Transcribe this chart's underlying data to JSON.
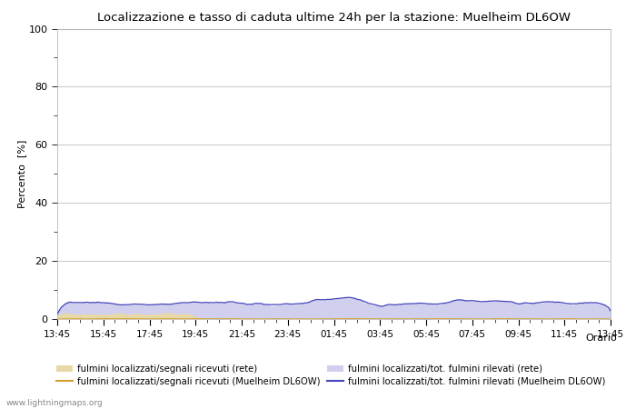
{
  "title": "Localizzazione e tasso di caduta ultime 24h per la stazione: Muelheim DL6OW",
  "ylabel": "Percento  [%]",
  "xlabel": "Orario",
  "xlim": [
    0,
    24
  ],
  "ylim": [
    0,
    100
  ],
  "yticks": [
    0,
    20,
    40,
    60,
    80,
    100
  ],
  "xtick_labels": [
    "13:45",
    "15:45",
    "17:45",
    "19:45",
    "21:45",
    "23:45",
    "01:45",
    "03:45",
    "05:45",
    "07:45",
    "09:45",
    "11:45",
    "13:45"
  ],
  "background_color": "#ffffff",
  "plot_bg_color": "#ffffff",
  "grid_color": "#cccccc",
  "fill_rete_color": "#e8d8a8",
  "fill_tot_color": "#d0d0ee",
  "line_rete_color": "#d4a030",
  "line_tot_color": "#4444bb",
  "watermark": "www.lightningmaps.org",
  "legend_labels": [
    "fulmini localizzati/segnali ricevuti (rete)",
    "fulmini localizzati/tot. fulmini rilevati (rete)",
    "fulmini localizzati/segnali ricevuti (Muelheim DL6OW)",
    "fulmini localizzati/tot. fulmini rilevati (Muelheim DL6OW)"
  ]
}
